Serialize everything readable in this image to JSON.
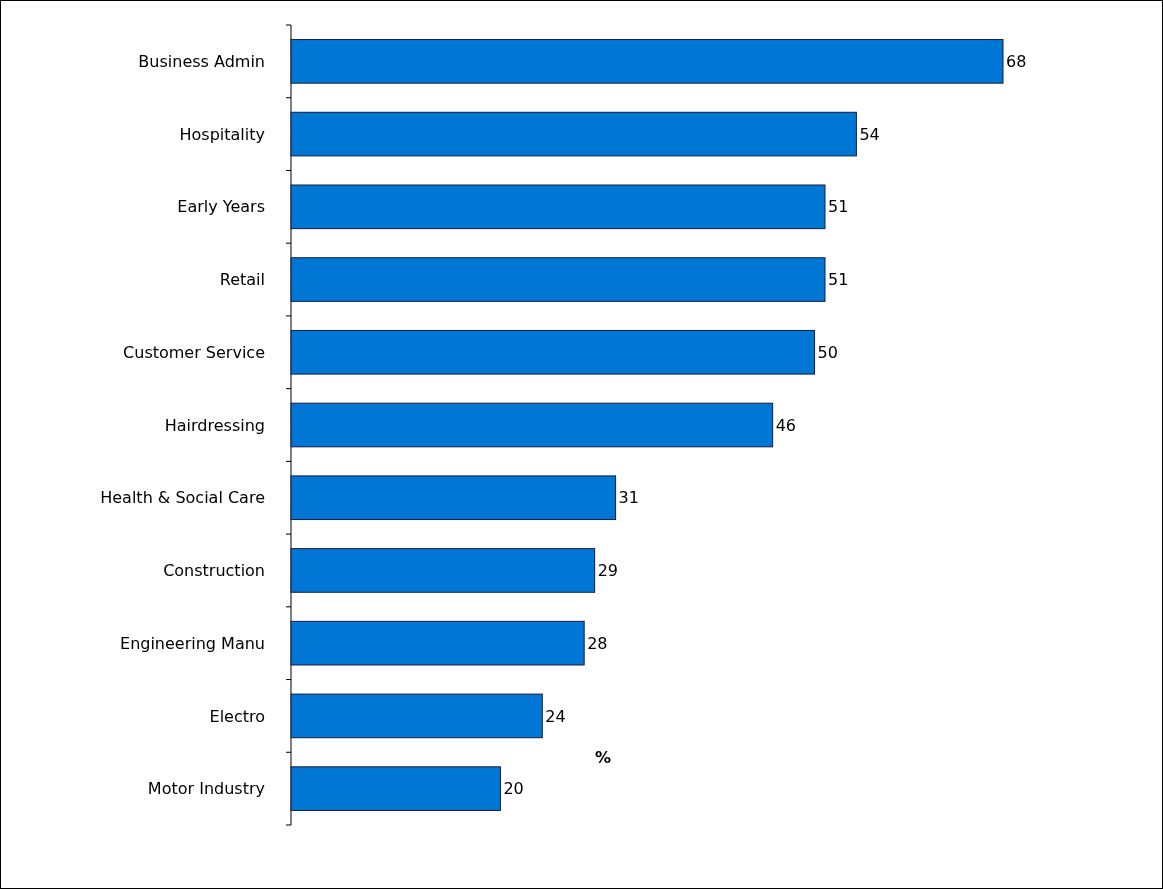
{
  "chart_data": {
    "type": "bar",
    "orientation": "horizontal",
    "xlabel": "%",
    "categories": [
      "Business Admin",
      "Hospitality",
      "Early Years",
      "Retail",
      "Customer Service",
      "Hairdressing",
      "Health & Social Care",
      "Construction",
      "Engineering Manu",
      "Electro",
      "Motor Industry"
    ],
    "values": [
      68,
      54,
      51,
      51,
      50,
      46,
      31,
      29,
      28,
      24,
      20
    ],
    "color": "#0077d4",
    "data_labels": true
  }
}
